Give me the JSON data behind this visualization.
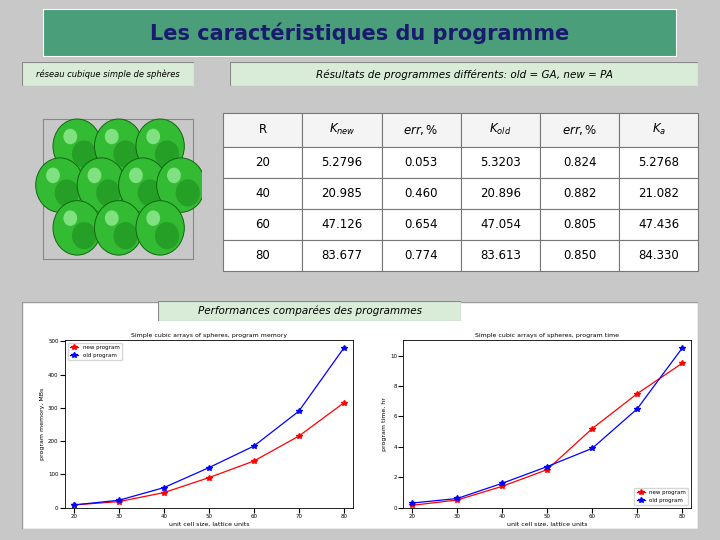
{
  "title": "Les caractéristiques du programme",
  "title_bg": "#4a9e7a",
  "title_text_color": "#1a1a6e",
  "subtitle_left": "réseau cubique simple de sphères",
  "subtitle_right": "Résultats de programmes différents: old = GA, new = PA",
  "subtitle_box_color": "#d8ecd8",
  "table_headers_display": [
    "R",
    "K_new",
    "err,%",
    "K_old",
    "err,%",
    "K_a"
  ],
  "table_data": [
    [
      "20",
      "5.2796",
      "0.053",
      "5.3203",
      "0.824",
      "5.2768"
    ],
    [
      "40",
      "20.985",
      "0.460",
      "20.896",
      "0.882",
      "21.082"
    ],
    [
      "60",
      "47.126",
      "0.654",
      "47.054",
      "0.805",
      "47.436"
    ],
    [
      "80",
      "83.677",
      "0.774",
      "83.613",
      "0.850",
      "84.330"
    ]
  ],
  "perf_label": "Performances comparées des programmes",
  "perf_box_color": "#d8ecd8",
  "x_vals": [
    20,
    30,
    40,
    50,
    60,
    70,
    80
  ],
  "mem_new": [
    8,
    18,
    45,
    90,
    140,
    215,
    315
  ],
  "mem_old": [
    8,
    22,
    60,
    120,
    185,
    290,
    480
  ],
  "time_new": [
    0.15,
    0.5,
    1.4,
    2.5,
    5.2,
    7.5,
    9.5
  ],
  "time_old": [
    0.3,
    0.6,
    1.6,
    2.7,
    3.9,
    6.5,
    10.5
  ],
  "mem_title": "Simple cubic arrays of spheres, program memory",
  "time_title": "Simple cubic arrays of spheres, program time",
  "xlabel": "unit cell size, lattice units",
  "mem_ylabel": "program memory, MBs",
  "time_ylabel": "program time, hr",
  "outer_bg": "#c8c8c8",
  "inner_bg": "#f4f4f4",
  "panel_bg": "white"
}
